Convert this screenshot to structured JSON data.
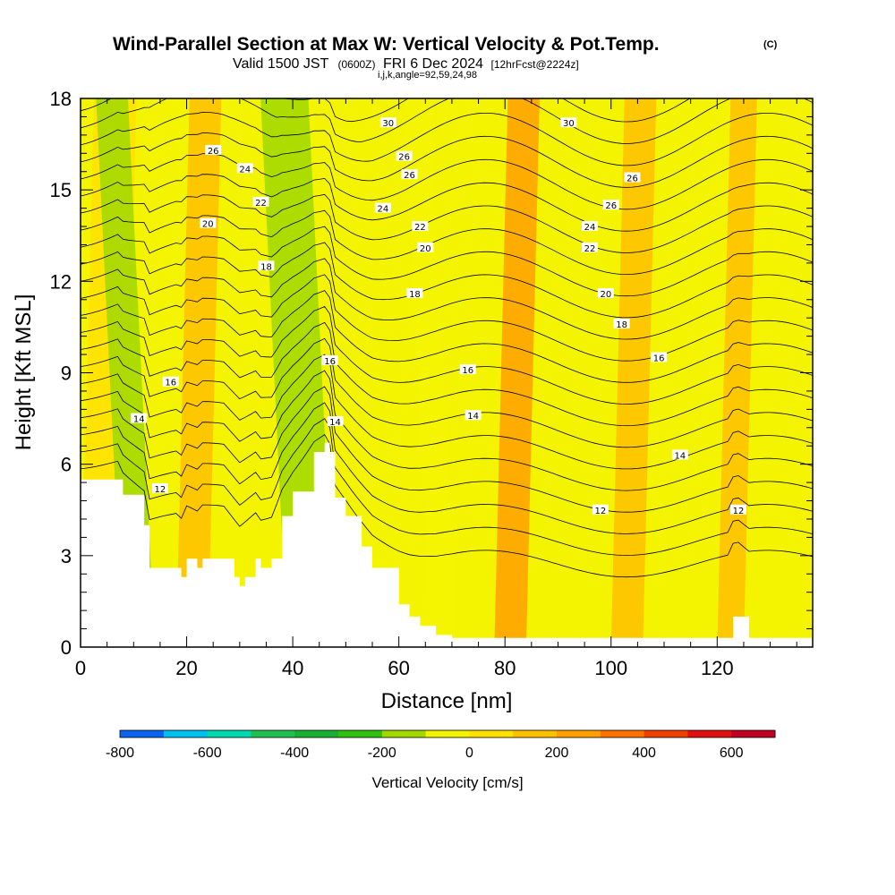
{
  "chart_data": {
    "type": "heatmap",
    "title": "Wind-Parallel Section at Max W: Vertical Velocity & Pot.Temp.",
    "title_mark": "(C)",
    "subtitle_main": "Valid 1500 JST",
    "subtitle_utc": "(0600Z)",
    "subtitle_date": "FRI 6 Dec 2024",
    "subtitle_fcst": "[12hrFcst@2224z]",
    "subtitle_ijk": "i,j,k,angle=92,59,24,98",
    "xlabel": "Distance [nm]",
    "ylabel": "Height [Kft MSL]",
    "xlim": [
      0,
      138
    ],
    "ylim": [
      0,
      18
    ],
    "x_ticks": [
      0,
      20,
      40,
      60,
      80,
      100,
      120
    ],
    "x_tick_labels": [
      "0",
      "20",
      "40",
      "60",
      "80",
      "100",
      "120"
    ],
    "y_ticks": [
      0,
      3,
      6,
      9,
      12,
      15,
      18
    ],
    "y_tick_labels": [
      "0",
      "3",
      "6",
      "9",
      "12",
      "15",
      "18"
    ],
    "background_field": {
      "name": "Vertical Velocity",
      "dominant_range_cm_s": [
        -200,
        200
      ],
      "bands": [
        {
          "x_range": [
            0,
            8
          ],
          "value_range": [
            0,
            100
          ]
        },
        {
          "x_range": [
            8,
            14
          ],
          "value_range": [
            -200,
            -100
          ]
        },
        {
          "x_range": [
            18,
            24
          ],
          "value_range": [
            100,
            200
          ]
        },
        {
          "x_range": [
            39,
            48
          ],
          "value_range": [
            -200,
            -100
          ]
        },
        {
          "x_range": [
            66,
            71
          ],
          "value_range": [
            -100,
            0
          ]
        },
        {
          "x_range": [
            78,
            84
          ],
          "value_range": [
            200,
            300
          ]
        },
        {
          "x_range": [
            100,
            106
          ],
          "value_range": [
            100,
            200
          ]
        },
        {
          "x_range": [
            120,
            125
          ],
          "value_range": [
            100,
            200
          ]
        }
      ]
    },
    "terrain": {
      "x": [
        0,
        7,
        8,
        12,
        13,
        18,
        19,
        20,
        22,
        23,
        27,
        29,
        30,
        31,
        33,
        34,
        36,
        38,
        40,
        44,
        46,
        47,
        48,
        50,
        53,
        55,
        60,
        62,
        64,
        67,
        70,
        75,
        80,
        85,
        90,
        95,
        100,
        110,
        115,
        120,
        122,
        123,
        124,
        126,
        130,
        138
      ],
      "height_kft": [
        5.5,
        5.5,
        5.0,
        4.0,
        2.6,
        2.6,
        2.3,
        2.9,
        2.6,
        2.9,
        2.9,
        2.3,
        2.0,
        2.3,
        2.9,
        2.6,
        2.9,
        4.3,
        5.1,
        6.4,
        6.7,
        6.4,
        4.9,
        4.3,
        3.3,
        2.6,
        1.4,
        1.0,
        0.7,
        0.4,
        0.3,
        0.3,
        0.3,
        0.3,
        0.3,
        0.3,
        0.3,
        0.3,
        0.3,
        0.3,
        0.3,
        1.0,
        1.0,
        0.3,
        0.3,
        0.3
      ]
    },
    "contours": {
      "name": "Pot.Temp.",
      "levels": [
        11,
        12,
        13,
        14,
        15,
        16,
        17,
        18,
        19,
        20,
        21,
        22,
        23,
        24,
        25,
        26,
        27,
        28,
        29,
        30,
        31,
        32
      ],
      "labels": [
        {
          "text": "30",
          "x": 58,
          "y": 17.2
        },
        {
          "text": "30",
          "x": 92,
          "y": 17.2
        },
        {
          "text": "26",
          "x": 25,
          "y": 16.3
        },
        {
          "text": "26",
          "x": 61,
          "y": 16.1
        },
        {
          "text": "26",
          "x": 62,
          "y": 15.5
        },
        {
          "text": "26",
          "x": 104,
          "y": 15.4
        },
        {
          "text": "24",
          "x": 31,
          "y": 15.7
        },
        {
          "text": "24",
          "x": 57,
          "y": 14.4
        },
        {
          "text": "24",
          "x": 96,
          "y": 13.8
        },
        {
          "text": "26",
          "x": 100,
          "y": 14.5
        },
        {
          "text": "22",
          "x": 34,
          "y": 14.6
        },
        {
          "text": "22",
          "x": 64,
          "y": 13.8
        },
        {
          "text": "22",
          "x": 96,
          "y": 13.1
        },
        {
          "text": "20",
          "x": 24,
          "y": 13.9
        },
        {
          "text": "20",
          "x": 65,
          "y": 13.1
        },
        {
          "text": "20",
          "x": 99,
          "y": 11.6
        },
        {
          "text": "18",
          "x": 35,
          "y": 12.5
        },
        {
          "text": "18",
          "x": 63,
          "y": 11.6
        },
        {
          "text": "18",
          "x": 102,
          "y": 10.6
        },
        {
          "text": "16",
          "x": 47,
          "y": 9.4
        },
        {
          "text": "16",
          "x": 17,
          "y": 8.7
        },
        {
          "text": "16",
          "x": 73,
          "y": 9.1
        },
        {
          "text": "16",
          "x": 109,
          "y": 9.5
        },
        {
          "text": "14",
          "x": 11,
          "y": 7.5
        },
        {
          "text": "14",
          "x": 48,
          "y": 7.4
        },
        {
          "text": "14",
          "x": 74,
          "y": 7.6
        },
        {
          "text": "14",
          "x": 113,
          "y": 6.3
        },
        {
          "text": "12",
          "x": 15,
          "y": 5.2
        },
        {
          "text": "12",
          "x": 98,
          "y": 4.5
        },
        {
          "text": "12",
          "x": 124,
          "y": 4.5
        }
      ]
    }
  },
  "colorbar": {
    "label": "Vertical Velocity [cm/s]",
    "tick_labels": [
      "-800",
      "-600",
      "-400",
      "-200",
      "0",
      "200",
      "400",
      "600"
    ],
    "colors": [
      "#0a14f0",
      "#0a64f0",
      "#00c0f0",
      "#00d8b0",
      "#20c050",
      "#18b030",
      "#30c010",
      "#a0d800",
      "#f4f400",
      "#ffe000",
      "#ffc000",
      "#ffa000",
      "#ff7000",
      "#f04000",
      "#e01010",
      "#c00020",
      "#a00060",
      "#700090"
    ]
  }
}
